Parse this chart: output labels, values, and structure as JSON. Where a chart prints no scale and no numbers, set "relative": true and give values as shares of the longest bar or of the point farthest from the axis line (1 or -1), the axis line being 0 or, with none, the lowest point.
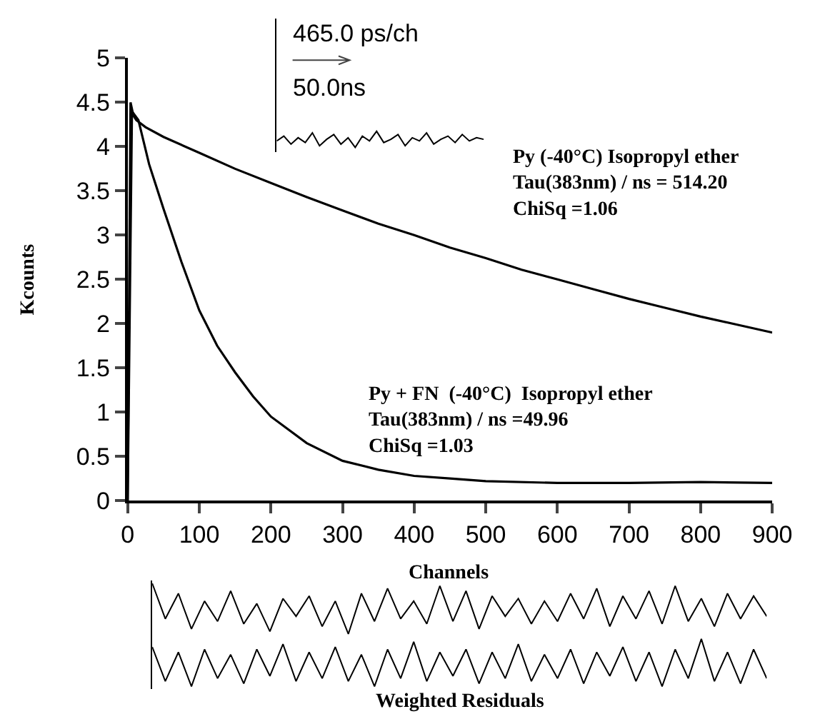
{
  "chart_data": [
    {
      "type": "line",
      "xlabel": "Channels",
      "ylabel": "Kcounts",
      "xlim": [
        0,
        900
      ],
      "xticks": [
        0,
        100,
        200,
        300,
        400,
        500,
        600,
        700,
        800,
        900
      ],
      "ylim": [
        0,
        5
      ],
      "yticks": [
        0,
        0.5,
        1,
        1.5,
        2,
        2.5,
        3,
        3.5,
        4,
        4.5,
        5
      ],
      "series": [
        {
          "color": "#000000",
          "x": [
            0,
            4,
            8,
            12,
            25,
            50,
            100,
            150,
            200,
            250,
            300,
            350,
            400,
            450,
            500,
            550,
            600,
            650,
            700,
            750,
            800,
            850,
            900
          ],
          "values": [
            0,
            4.5,
            4.35,
            4.3,
            4.22,
            4.11,
            3.93,
            3.75,
            3.59,
            3.43,
            3.28,
            3.13,
            3.0,
            2.86,
            2.74,
            2.61,
            2.5,
            2.39,
            2.28,
            2.18,
            2.08,
            1.99,
            1.9
          ]
        },
        {
          "color": "#000000",
          "x": [
            0,
            6,
            15,
            30,
            50,
            75,
            100,
            125,
            150,
            175,
            200,
            250,
            300,
            350,
            400,
            450,
            500,
            600,
            700,
            800,
            900
          ],
          "values": [
            0,
            4.4,
            4.3,
            3.8,
            3.3,
            2.7,
            2.15,
            1.75,
            1.45,
            1.18,
            0.95,
            0.65,
            0.45,
            0.35,
            0.28,
            0.25,
            0.22,
            0.2,
            0.2,
            0.21,
            0.2
          ]
        }
      ],
      "annotations": [
        "Py (-40°C) Isopropyl ether\nTau(383nm) / ns = 514.20\nChiSq =1.06",
        "Py + FN  (-40°C)  Isopropyl ether\nTau(383nm) / ns =49.96\nChiSq =1.03"
      ]
    },
    {
      "type": "line",
      "relative": true,
      "color": "#000000",
      "categories": [
        null,
        null,
        null,
        null,
        null,
        null,
        null,
        null,
        null,
        null,
        null,
        null,
        null,
        null,
        null,
        null,
        null,
        null,
        null,
        null,
        null,
        null,
        null,
        null,
        null,
        null,
        null,
        null,
        null,
        null
      ],
      "values": [
        0.4,
        0.7,
        0.2,
        0.6,
        0.3,
        0.9,
        0.1,
        0.5,
        0.8,
        0.2,
        0.6,
        0,
        0.7,
        0.4,
        1,
        0.3,
        0.5,
        0.8,
        0.1,
        0.6,
        0.4,
        0.9,
        0.2,
        0.5,
        0.7,
        0.3,
        0.8,
        0.4,
        0.6,
        0.5
      ],
      "annotations": [
        "465.0 ps/ch",
        "50.0ns"
      ]
    },
    {
      "type": "line",
      "relative": true,
      "color": "#000000",
      "categories": [
        null,
        null,
        null,
        null,
        null,
        null,
        null,
        null,
        null,
        null,
        null,
        null,
        null,
        null,
        null,
        null,
        null,
        null,
        null,
        null,
        null,
        null,
        null,
        null,
        null,
        null,
        null,
        null,
        null,
        null,
        null,
        null,
        null,
        null,
        null,
        null,
        null,
        null,
        null,
        null,
        null,
        null,
        null,
        null,
        null,
        null,
        null,
        null
      ],
      "values": [
        1,
        0.3,
        0.8,
        0.1,
        0.65,
        0.25,
        0.85,
        0.2,
        0.6,
        0.05,
        0.7,
        0.35,
        0.75,
        0.15,
        0.65,
        0,
        0.8,
        0.25,
        0.9,
        0.3,
        0.65,
        0.2,
        0.95,
        0.25,
        0.85,
        0.1,
        0.75,
        0.35,
        0.7,
        0.2,
        0.65,
        0.25,
        0.8,
        0.3,
        0.9,
        0.15,
        0.75,
        0.3,
        0.85,
        0.2,
        0.95,
        0.25,
        0.7,
        0.15,
        0.8,
        0.3,
        0.75,
        0.35
      ]
    },
    {
      "type": "line",
      "relative": true,
      "color": "#000000",
      "xlabel": "Weighted Residuals",
      "categories": [
        null,
        null,
        null,
        null,
        null,
        null,
        null,
        null,
        null,
        null,
        null,
        null,
        null,
        null,
        null,
        null,
        null,
        null,
        null,
        null,
        null,
        null,
        null,
        null,
        null,
        null,
        null,
        null,
        null,
        null,
        null,
        null,
        null,
        null,
        null,
        null,
        null,
        null,
        null,
        null,
        null,
        null,
        null,
        null,
        null,
        null,
        null,
        null
      ],
      "values": [
        0.83,
        0.11,
        0.72,
        0,
        0.78,
        0.17,
        0.67,
        0.06,
        0.78,
        0.22,
        0.89,
        0.11,
        0.72,
        0.17,
        0.83,
        0.11,
        0.67,
        0,
        0.78,
        0.17,
        0.94,
        0.11,
        0.72,
        0.22,
        0.78,
        0.06,
        0.72,
        0.17,
        0.89,
        0.11,
        0.67,
        0.17,
        0.78,
        0.06,
        0.72,
        0.22,
        0.83,
        0.11,
        0.72,
        0,
        0.78,
        0.17,
        1,
        0.11,
        0.72,
        0.06,
        0.78,
        0.17
      ]
    }
  ]
}
